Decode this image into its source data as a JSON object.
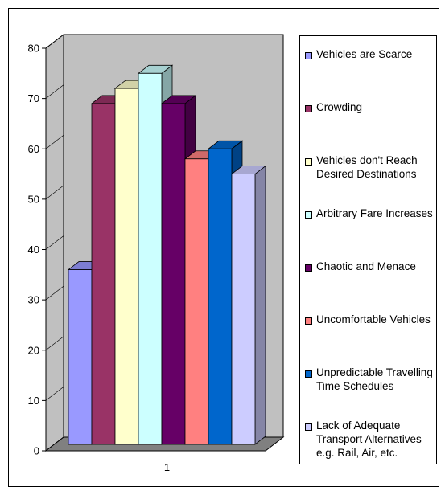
{
  "chart_data": {
    "type": "bar",
    "style": "3d-clustered-column",
    "title": "",
    "xlabel": "",
    "ylabel": "",
    "categories": [
      "1"
    ],
    "ylim": [
      0,
      80
    ],
    "yticks": [
      0,
      10,
      20,
      30,
      40,
      50,
      60,
      70,
      80
    ],
    "grid": false,
    "legend_position": "right",
    "series": [
      {
        "name": "Vehicles are Scarce",
        "values": [
          36
        ],
        "color": "#9999ff"
      },
      {
        "name": "Crowding",
        "values": [
          69
        ],
        "color": "#993366"
      },
      {
        "name": "Vehicles don't Reach Desired Destinations",
        "values": [
          72
        ],
        "color": "#ffffcc"
      },
      {
        "name": "Arbitrary Fare Increases",
        "values": [
          75
        ],
        "color": "#ccffff"
      },
      {
        "name": "Chaotic and Menace",
        "values": [
          69
        ],
        "color": "#660066"
      },
      {
        "name": "Uncomfortable Vehicles",
        "values": [
          58
        ],
        "color": "#ff8080"
      },
      {
        "name": "Unpredictable Travelling Time Schedules",
        "values": [
          60
        ],
        "color": "#0066cc"
      },
      {
        "name": "Lack of Adequate Transport Alternatives e.g. Rail, Air, etc.",
        "values": [
          55
        ],
        "color": "#ccccff"
      }
    ],
    "wall_color": "#c0c0c0",
    "floor_color": "#808080"
  }
}
